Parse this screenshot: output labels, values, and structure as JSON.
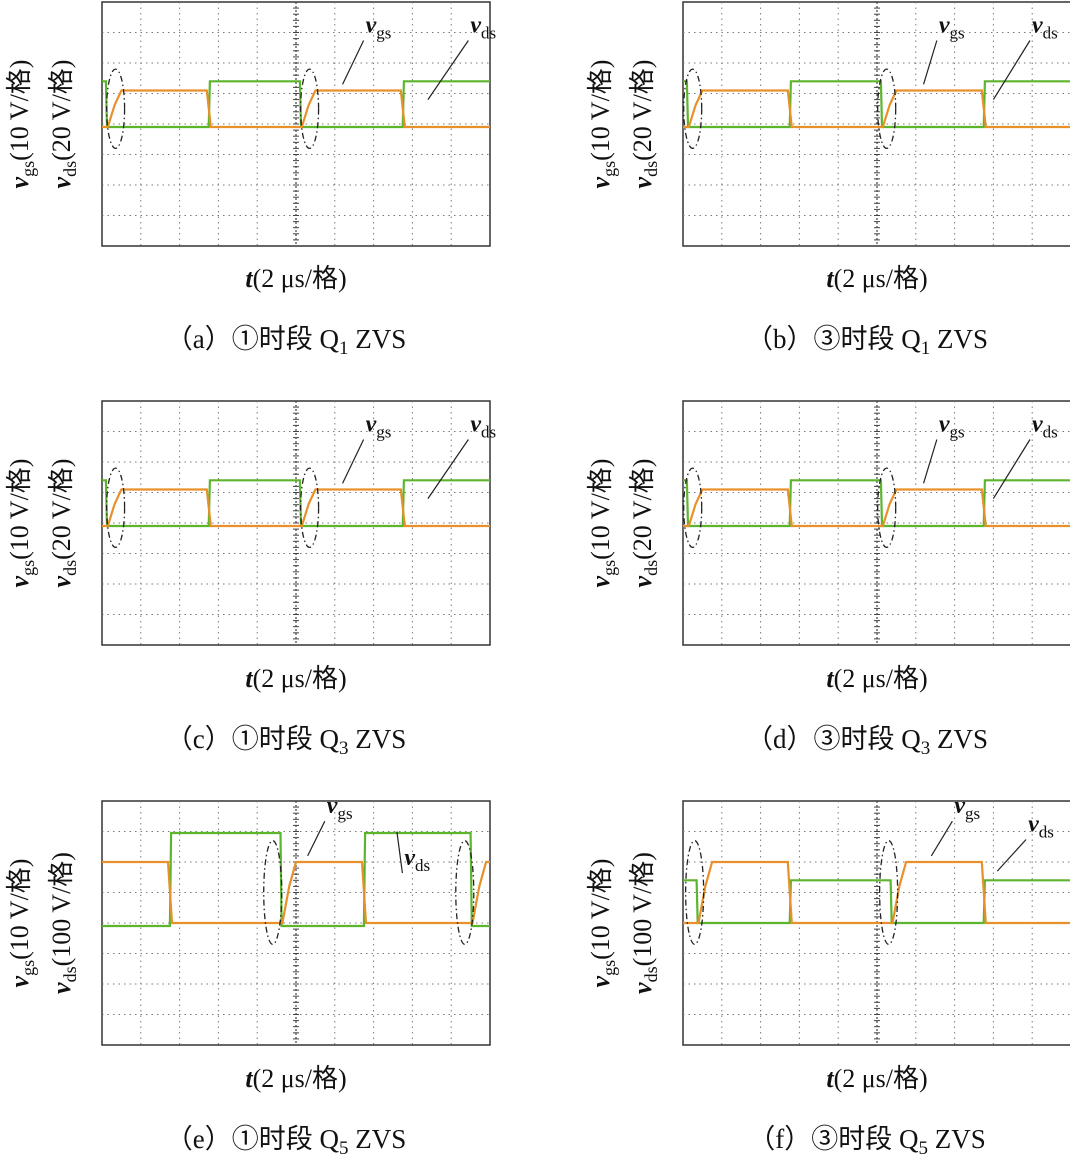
{
  "colors": {
    "vgs": "#e8902a",
    "vds": "#5db52e",
    "grid": "#7a7a7a",
    "frame": "#333333",
    "text": "#111111"
  },
  "chart_data": [
    {
      "type": "line",
      "caption_id": "（a）",
      "caption_circle": "①",
      "caption_text": "时段",
      "caption_q": "Q",
      "caption_sub": "1",
      "caption_tail": "ZVS",
      "ylabel_gs": "v",
      "ylabel_gs_sub": "gs",
      "ylabel_gs_scale": "(10 V/格)",
      "ylabel_ds": "v",
      "ylabel_ds_sub": "ds",
      "ylabel_ds_scale": "(20 V/格)",
      "xlabel_var": "t",
      "xlabel_scale": "(2 μs/格)",
      "trace_label_gs": "v",
      "trace_label_gs_sub": "gs",
      "trace_label_ds": "v",
      "trace_label_ds_sub": "ds",
      "grid": true,
      "divisions_x": 10,
      "divisions_y": 8,
      "xlim": [
        0,
        10
      ],
      "ylim": [
        0,
        8
      ],
      "vgs_high": 5.1,
      "vgs_low": 3.9,
      "vds_high": 5.4,
      "vds_low": 3.9,
      "switch_on": [
        0.15,
        5.15
      ],
      "switch_off": [
        2.7,
        7.7
      ],
      "period": 5.0,
      "circles_at": [
        0.35,
        5.35
      ]
    },
    {
      "type": "line",
      "caption_id": "（b）",
      "caption_circle": "③",
      "caption_text": "时段",
      "caption_q": "Q",
      "caption_sub": "1",
      "caption_tail": "ZVS",
      "ylabel_gs": "v",
      "ylabel_gs_sub": "gs",
      "ylabel_gs_scale": "(10 V/格)",
      "ylabel_ds": "v",
      "ylabel_ds_sub": "ds",
      "ylabel_ds_scale": "(20 V/格)",
      "xlabel_var": "t",
      "xlabel_scale": "(2 μs/格)",
      "trace_label_gs": "v",
      "trace_label_gs_sub": "gs",
      "trace_label_ds": "v",
      "trace_label_ds_sub": "ds",
      "grid": true,
      "divisions_x": 10,
      "divisions_y": 8,
      "xlim": [
        0,
        10
      ],
      "ylim": [
        0,
        8
      ],
      "vgs_high": 5.1,
      "vgs_low": 3.9,
      "vds_high": 5.4,
      "vds_low": 3.9,
      "switch_on": [
        0.15,
        5.15
      ],
      "switch_off": [
        2.7,
        7.7
      ],
      "period": 5.0,
      "circles_at": [
        0.25,
        5.25
      ]
    },
    {
      "type": "line",
      "caption_id": "（c）",
      "caption_circle": "①",
      "caption_text": "时段",
      "caption_q": "Q",
      "caption_sub": "3",
      "caption_tail": "ZVS",
      "ylabel_gs": "v",
      "ylabel_gs_sub": "gs",
      "ylabel_gs_scale": "(10 V/格)",
      "ylabel_ds": "v",
      "ylabel_ds_sub": "ds",
      "ylabel_ds_scale": "(20 V/格)",
      "xlabel_var": "t",
      "xlabel_scale": "(2 μs/格)",
      "trace_label_gs": "v",
      "trace_label_gs_sub": "gs",
      "trace_label_ds": "v",
      "trace_label_ds_sub": "ds",
      "grid": true,
      "divisions_x": 10,
      "divisions_y": 8,
      "xlim": [
        0,
        10
      ],
      "ylim": [
        0,
        8
      ],
      "vgs_high": 5.1,
      "vgs_low": 3.9,
      "vds_high": 5.4,
      "vds_low": 3.9,
      "switch_on": [
        0.15,
        5.15
      ],
      "switch_off": [
        2.7,
        7.7
      ],
      "period": 5.0,
      "circles_at": [
        0.35,
        5.35
      ]
    },
    {
      "type": "line",
      "caption_id": "（d）",
      "caption_circle": "③",
      "caption_text": "时段",
      "caption_q": "Q",
      "caption_sub": "3",
      "caption_tail": "ZVS",
      "ylabel_gs": "v",
      "ylabel_gs_sub": "gs",
      "ylabel_gs_scale": "(10 V/格)",
      "ylabel_ds": "v",
      "ylabel_ds_sub": "ds",
      "ylabel_ds_scale": "(20 V/格)",
      "xlabel_var": "t",
      "xlabel_scale": "(2 μs/格)",
      "trace_label_gs": "v",
      "trace_label_gs_sub": "gs",
      "trace_label_ds": "v",
      "trace_label_ds_sub": "ds",
      "grid": true,
      "divisions_x": 10,
      "divisions_y": 8,
      "xlim": [
        0,
        10
      ],
      "ylim": [
        0,
        8
      ],
      "vgs_high": 5.1,
      "vgs_low": 3.9,
      "vds_high": 5.4,
      "vds_low": 3.9,
      "switch_on": [
        0.15,
        5.15
      ],
      "switch_off": [
        2.7,
        7.7
      ],
      "period": 5.0,
      "circles_at": [
        0.25,
        5.25
      ]
    },
    {
      "type": "line",
      "caption_id": "（e）",
      "caption_circle": "①",
      "caption_text": "时段",
      "caption_q": "Q",
      "caption_sub": "5",
      "caption_tail": "ZVS",
      "ylabel_gs": "v",
      "ylabel_gs_sub": "gs",
      "ylabel_gs_scale": "(10 V/格)",
      "ylabel_ds": "v",
      "ylabel_ds_sub": "ds",
      "ylabel_ds_scale": "(100 V/格)",
      "xlabel_var": "t",
      "xlabel_scale": "(2 μs/格)",
      "trace_label_gs": "v",
      "trace_label_gs_sub": "gs",
      "trace_label_ds": "v",
      "trace_label_ds_sub": "ds",
      "grid": true,
      "divisions_x": 10,
      "divisions_y": 8,
      "xlim": [
        0,
        10
      ],
      "ylim": [
        0,
        8
      ],
      "vgs_high": 6.0,
      "vgs_low": 4.0,
      "vds_high": 6.95,
      "vds_low": 3.9,
      "vds_droop": 0.2,
      "vds_inverted": true,
      "switch_on": [
        4.65,
        9.55
      ],
      "switch_off": [
        1.7,
        6.7
      ],
      "period": 5.0,
      "circles_at": [
        4.4,
        9.35
      ]
    },
    {
      "type": "line",
      "caption_id": "（f）",
      "caption_circle": "③",
      "caption_text": "时段",
      "caption_q": "Q",
      "caption_sub": "5",
      "caption_tail": "ZVS",
      "ylabel_gs": "v",
      "ylabel_gs_sub": "gs",
      "ylabel_gs_scale": "(10 V/格)",
      "ylabel_ds": "v",
      "ylabel_ds_sub": "ds",
      "ylabel_ds_scale": "(100 V/格)",
      "xlabel_var": "t",
      "xlabel_scale": "(2 μs/格)",
      "trace_label_gs": "v",
      "trace_label_gs_sub": "gs",
      "trace_label_ds": "v",
      "trace_label_ds_sub": "ds",
      "grid": true,
      "divisions_x": 10,
      "divisions_y": 8,
      "xlim": [
        0,
        10
      ],
      "ylim": [
        0,
        8
      ],
      "vgs_high": 6.0,
      "vgs_low": 4.0,
      "vds_high": 5.4,
      "vds_low": 4.0,
      "switch_on": [
        0.4,
        5.4
      ],
      "switch_off": [
        2.7,
        7.7
      ],
      "period": 5.0,
      "circles_at": [
        0.3,
        5.3
      ]
    }
  ]
}
